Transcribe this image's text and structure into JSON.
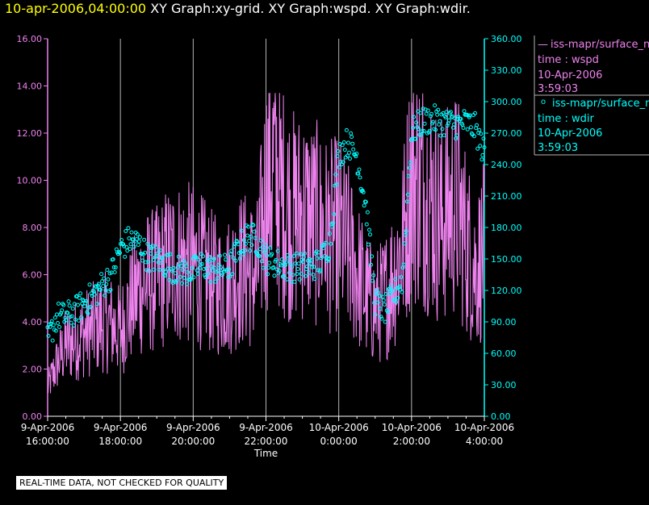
{
  "header": {
    "date_label": "10-apr-2006,04:00:00",
    "graphs_label": "XY Graph:xy-grid.  XY Graph:wspd.  XY Graph:wdir."
  },
  "colors": {
    "background": "#000000",
    "wspd": "#ee82ee",
    "wdir": "#00ffff",
    "grid": "#b4b4b4",
    "title_date": "#ffff00"
  },
  "legend": [
    {
      "source": "iss-mapr/surface_n",
      "variable": "time : wspd",
      "date": "10-Apr-2006",
      "time": "3:59:03"
    },
    {
      "source": "iss-mapr/surface_n",
      "variable": "time : wdir",
      "date": "10-Apr-2006",
      "time": "3:59:03"
    }
  ],
  "footer_note": "REAL-TIME DATA, NOT CHECKED FOR QUALITY",
  "chart_data": {
    "type": "line",
    "xlabel": "Time",
    "xlim_hours": [
      16.0,
      28.0
    ],
    "x_ticks": [
      {
        "hour": 16,
        "date": "9-Apr-2006",
        "time": "16:00:00"
      },
      {
        "hour": 18,
        "date": "9-Apr-2006",
        "time": "18:00:00"
      },
      {
        "hour": 20,
        "date": "9-Apr-2006",
        "time": "20:00:00"
      },
      {
        "hour": 22,
        "date": "9-Apr-2006",
        "time": "22:00:00"
      },
      {
        "hour": 24,
        "date": "10-Apr-2006",
        "time": "0:00:00"
      },
      {
        "hour": 26,
        "date": "10-Apr-2006",
        "time": "2:00:00"
      },
      {
        "hour": 28,
        "date": "10-Apr-2006",
        "time": "4:00:00"
      }
    ],
    "left_axis": {
      "ylim": [
        0,
        16
      ],
      "ticks": [
        0,
        2,
        4,
        6,
        8,
        10,
        12,
        14,
        16
      ],
      "tick_labels": [
        "0.00",
        "2.00",
        "4.00",
        "6.00",
        "8.00",
        "10.00",
        "12.00",
        "14.00",
        "16.00"
      ]
    },
    "right_axis": {
      "ylim": [
        0,
        360
      ],
      "ticks": [
        0,
        30,
        60,
        90,
        120,
        150,
        180,
        210,
        240,
        270,
        300,
        330,
        360
      ],
      "tick_labels": [
        "0.00",
        "30.00",
        "60.00",
        "90.00",
        "120.00",
        "150.00",
        "180.00",
        "210.00",
        "240.00",
        "270.00",
        "300.00",
        "330.00",
        "360.00"
      ]
    },
    "series": [
      {
        "name": "wspd",
        "axis": "left",
        "style": "line",
        "x_hours": [
          16.0,
          16.25,
          16.5,
          16.75,
          17.0,
          17.25,
          17.5,
          17.75,
          18.0,
          18.25,
          18.5,
          18.75,
          19.0,
          19.25,
          19.5,
          19.75,
          20.0,
          20.25,
          20.5,
          20.75,
          21.0,
          21.25,
          21.5,
          21.75,
          22.0,
          22.2,
          22.4,
          22.6,
          22.8,
          23.0,
          23.25,
          23.5,
          23.75,
          24.0,
          24.25,
          24.5,
          24.75,
          25.0,
          25.25,
          25.5,
          25.75,
          26.0,
          26.25,
          26.5,
          26.75,
          27.0,
          27.25,
          27.5,
          27.75,
          28.0
        ],
        "values": [
          1.2,
          2.2,
          3.0,
          3.2,
          3.5,
          3.7,
          4.0,
          3.9,
          3.6,
          4.6,
          5.4,
          5.7,
          5.8,
          6.3,
          6.6,
          6.5,
          6.4,
          6.1,
          5.7,
          5.4,
          5.6,
          6.2,
          6.2,
          5.9,
          9.6,
          10.6,
          9.4,
          8.8,
          8.4,
          8.6,
          8.3,
          8.0,
          7.6,
          7.8,
          7.0,
          6.1,
          5.1,
          4.6,
          5.0,
          6.0,
          7.2,
          10.2,
          9.7,
          9.3,
          8.3,
          8.6,
          9.1,
          7.4,
          6.2,
          7.0
        ],
        "min_max_by_segment": {
          "note": "values oscillate rapidly about these means; min ~0.5, max ~13.7"
        }
      },
      {
        "name": "wdir",
        "axis": "right",
        "style": "scatter",
        "x_hours": [
          16.0,
          16.25,
          16.5,
          16.75,
          17.0,
          17.25,
          17.5,
          17.75,
          18.0,
          18.25,
          18.5,
          18.75,
          19.0,
          19.25,
          19.5,
          19.75,
          20.0,
          20.25,
          20.5,
          20.75,
          21.0,
          21.25,
          21.5,
          21.75,
          22.0,
          22.2,
          22.4,
          22.6,
          22.8,
          23.0,
          23.25,
          23.5,
          23.75,
          24.0,
          24.25,
          24.5,
          24.75,
          25.0,
          25.25,
          25.5,
          25.75,
          26.0,
          26.25,
          26.5,
          26.75,
          27.0,
          27.25,
          27.5,
          27.75,
          28.0
        ],
        "values": [
          72,
          95,
          95,
          100,
          108,
          115,
          125,
          135,
          160,
          168,
          165,
          152,
          150,
          145,
          140,
          138,
          138,
          145,
          140,
          140,
          142,
          160,
          172,
          168,
          150,
          147,
          145,
          142,
          142,
          143,
          142,
          148,
          165,
          250,
          262,
          248,
          200,
          110,
          100,
          115,
          130,
          270,
          280,
          283,
          282,
          280,
          278,
          280,
          275,
          250
        ]
      }
    ]
  }
}
